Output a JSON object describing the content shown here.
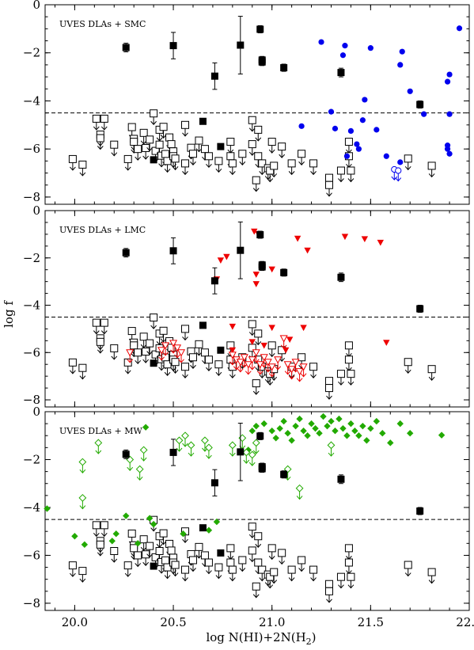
{
  "chart_data": {
    "type": "scatter",
    "xlabel": "log N(HI)+2N(H",
    "xlabel_sub": "2",
    "xlabel_close": ")",
    "ylabel": "log f",
    "xlim": [
      19.85,
      22.0
    ],
    "ylim": [
      -8.3,
      0.0
    ],
    "x_ticks": [
      20.0,
      20.5,
      21.0,
      21.5,
      22.0
    ],
    "x_tick_labels": [
      "20.0",
      "20.5",
      "21.0",
      "21.5",
      "22.0"
    ],
    "y_ticks": [
      0,
      -2,
      -4,
      -6,
      -8
    ],
    "y_tick_labels": [
      "0",
      "−2",
      "−4",
      "−6",
      "−8"
    ],
    "threshold_logf": -4.5,
    "colors": {
      "dla": "#000000",
      "smc": "#0000ee",
      "lmc": "#ee0000",
      "mw": "#22aa00"
    },
    "dla_detections": [
      {
        "x": 20.26,
        "y": -1.78,
        "err": 0.18
      },
      {
        "x": 20.5,
        "y": -1.7,
        "err": 0.55
      },
      {
        "x": 20.71,
        "y": -2.97,
        "err": 0.55
      },
      {
        "x": 20.84,
        "y": -1.68,
        "err": 1.2
      },
      {
        "x": 20.94,
        "y": -1.02,
        "err": 0.15
      },
      {
        "x": 20.95,
        "y": -2.3,
        "err": 0.15
      },
      {
        "x": 20.95,
        "y": -2.38,
        "err": 0.15
      },
      {
        "x": 21.06,
        "y": -2.62,
        "err": 0.15
      },
      {
        "x": 21.35,
        "y": -2.82,
        "err": 0.18
      },
      {
        "x": 21.75,
        "y": -4.15,
        "err": 0.15
      },
      {
        "x": 20.4,
        "y": -6.45,
        "err": 0.1
      },
      {
        "x": 20.65,
        "y": -4.85,
        "err": 0.0
      },
      {
        "x": 20.74,
        "y": -5.9,
        "err": 0.0
      }
    ],
    "dla_upper_limits": [
      {
        "x": 19.99,
        "y": -6.42
      },
      {
        "x": 20.04,
        "y": -6.65
      },
      {
        "x": 20.11,
        "y": -4.74
      },
      {
        "x": 20.13,
        "y": -5.4
      },
      {
        "x": 20.13,
        "y": -5.55
      },
      {
        "x": 20.15,
        "y": -4.74
      },
      {
        "x": 20.2,
        "y": -5.82
      },
      {
        "x": 20.27,
        "y": -6.42
      },
      {
        "x": 20.29,
        "y": -5.09
      },
      {
        "x": 20.3,
        "y": -5.58
      },
      {
        "x": 20.3,
        "y": -5.7
      },
      {
        "x": 20.32,
        "y": -6.0
      },
      {
        "x": 20.35,
        "y": -5.33
      },
      {
        "x": 20.36,
        "y": -5.96
      },
      {
        "x": 20.38,
        "y": -5.61
      },
      {
        "x": 20.4,
        "y": -4.52
      },
      {
        "x": 20.41,
        "y": -6.08
      },
      {
        "x": 20.43,
        "y": -5.2
      },
      {
        "x": 20.43,
        "y": -5.82
      },
      {
        "x": 20.44,
        "y": -6.28
      },
      {
        "x": 20.45,
        "y": -5.08
      },
      {
        "x": 20.46,
        "y": -6.21
      },
      {
        "x": 20.47,
        "y": -6.5
      },
      {
        "x": 20.48,
        "y": -5.52
      },
      {
        "x": 20.49,
        "y": -5.8
      },
      {
        "x": 20.5,
        "y": -6.1
      },
      {
        "x": 20.5,
        "y": -6.3
      },
      {
        "x": 20.51,
        "y": -6.4
      },
      {
        "x": 20.56,
        "y": -5.0
      },
      {
        "x": 20.56,
        "y": -6.6
      },
      {
        "x": 20.59,
        "y": -5.95
      },
      {
        "x": 20.6,
        "y": -6.2
      },
      {
        "x": 20.63,
        "y": -5.65
      },
      {
        "x": 20.66,
        "y": -6.0
      },
      {
        "x": 20.68,
        "y": -6.3
      },
      {
        "x": 20.73,
        "y": -6.5
      },
      {
        "x": 20.79,
        "y": -5.7
      },
      {
        "x": 20.79,
        "y": -6.3
      },
      {
        "x": 20.8,
        "y": -6.6
      },
      {
        "x": 20.85,
        "y": -6.2
      },
      {
        "x": 20.9,
        "y": -4.8
      },
      {
        "x": 20.9,
        "y": -5.8
      },
      {
        "x": 20.92,
        "y": -7.3
      },
      {
        "x": 20.93,
        "y": -5.2
      },
      {
        "x": 20.93,
        "y": -6.3
      },
      {
        "x": 20.95,
        "y": -6.6
      },
      {
        "x": 20.98,
        "y": -6.8
      },
      {
        "x": 20.99,
        "y": -6.9
      },
      {
        "x": 21.0,
        "y": -5.7
      },
      {
        "x": 21.01,
        "y": -6.7
      },
      {
        "x": 21.05,
        "y": -5.9
      },
      {
        "x": 21.1,
        "y": -6.6
      },
      {
        "x": 21.15,
        "y": -6.2
      },
      {
        "x": 21.21,
        "y": -6.6
      },
      {
        "x": 21.29,
        "y": -7.2
      },
      {
        "x": 21.29,
        "y": -7.5
      },
      {
        "x": 21.35,
        "y": -6.9
      },
      {
        "x": 21.39,
        "y": -5.7
      },
      {
        "x": 21.39,
        "y": -6.3
      },
      {
        "x": 21.4,
        "y": -6.9
      },
      {
        "x": 21.69,
        "y": -6.4
      },
      {
        "x": 21.81,
        "y": -6.7
      }
    ],
    "smc_detections": [
      {
        "x": 21.25,
        "y": -1.55
      },
      {
        "x": 21.37,
        "y": -1.7
      },
      {
        "x": 21.36,
        "y": -2.1
      },
      {
        "x": 21.5,
        "y": -1.8
      },
      {
        "x": 21.66,
        "y": -1.95
      },
      {
        "x": 21.65,
        "y": -2.5
      },
      {
        "x": 21.95,
        "y": -0.98
      },
      {
        "x": 21.9,
        "y": -2.9
      },
      {
        "x": 21.89,
        "y": -3.2
      },
      {
        "x": 21.7,
        "y": -3.6
      },
      {
        "x": 21.47,
        "y": -3.95
      },
      {
        "x": 21.3,
        "y": -4.45
      },
      {
        "x": 21.77,
        "y": -4.55
      },
      {
        "x": 21.9,
        "y": -4.55
      },
      {
        "x": 21.46,
        "y": -4.8
      },
      {
        "x": 21.32,
        "y": -5.15
      },
      {
        "x": 21.4,
        "y": -5.25
      },
      {
        "x": 21.53,
        "y": -5.2
      },
      {
        "x": 21.15,
        "y": -5.05
      },
      {
        "x": 21.43,
        "y": -5.8
      },
      {
        "x": 21.44,
        "y": -6.0
      },
      {
        "x": 21.58,
        "y": -6.3
      },
      {
        "x": 21.38,
        "y": -6.3
      },
      {
        "x": 21.65,
        "y": -6.55
      },
      {
        "x": 21.89,
        "y": -5.85
      },
      {
        "x": 21.89,
        "y": -6.0
      },
      {
        "x": 21.9,
        "y": -6.2
      }
    ],
    "smc_upper_limits": [
      {
        "x": 21.62,
        "y": -6.85
      },
      {
        "x": 21.64,
        "y": -6.9
      }
    ],
    "lmc_detections": [
      {
        "x": 20.91,
        "y": -0.88
      },
      {
        "x": 20.93,
        "y": -0.98
      },
      {
        "x": 21.13,
        "y": -1.18
      },
      {
        "x": 21.47,
        "y": -1.2
      },
      {
        "x": 21.37,
        "y": -1.1
      },
      {
        "x": 21.55,
        "y": -1.35
      },
      {
        "x": 21.18,
        "y": -1.68
      },
      {
        "x": 20.77,
        "y": -1.95
      },
      {
        "x": 20.74,
        "y": -2.1
      },
      {
        "x": 21.0,
        "y": -2.48
      },
      {
        "x": 20.92,
        "y": -2.7
      },
      {
        "x": 20.92,
        "y": -3.1
      },
      {
        "x": 20.72,
        "y": -2.9
      },
      {
        "x": 20.8,
        "y": -4.9
      },
      {
        "x": 21.0,
        "y": -4.95
      },
      {
        "x": 21.16,
        "y": -4.95
      },
      {
        "x": 21.58,
        "y": -5.58
      },
      {
        "x": 20.96,
        "y": -5.7
      },
      {
        "x": 20.9,
        "y": -5.55
      },
      {
        "x": 21.09,
        "y": -5.45
      },
      {
        "x": 20.8,
        "y": -5.9
      },
      {
        "x": 21.07,
        "y": -5.9
      }
    ],
    "lmc_upper_limits": [
      {
        "x": 20.28,
        "y": -6.0
      },
      {
        "x": 20.44,
        "y": -5.9
      },
      {
        "x": 20.46,
        "y": -5.7
      },
      {
        "x": 20.5,
        "y": -5.6
      },
      {
        "x": 20.52,
        "y": -5.8
      },
      {
        "x": 20.54,
        "y": -6.0
      },
      {
        "x": 20.8,
        "y": -6.1
      },
      {
        "x": 20.82,
        "y": -6.3
      },
      {
        "x": 20.84,
        "y": -6.4
      },
      {
        "x": 20.86,
        "y": -6.2
      },
      {
        "x": 20.88,
        "y": -6.5
      },
      {
        "x": 20.9,
        "y": -6.3
      },
      {
        "x": 20.92,
        "y": -6.0
      },
      {
        "x": 20.94,
        "y": -6.5
      },
      {
        "x": 20.96,
        "y": -6.2
      },
      {
        "x": 20.98,
        "y": -6.4
      },
      {
        "x": 21.0,
        "y": -6.6
      },
      {
        "x": 21.03,
        "y": -6.3
      },
      {
        "x": 21.06,
        "y": -5.4
      },
      {
        "x": 21.08,
        "y": -6.5
      },
      {
        "x": 21.1,
        "y": -6.7
      },
      {
        "x": 21.12,
        "y": -6.4
      },
      {
        "x": 21.14,
        "y": -6.8
      },
      {
        "x": 21.16,
        "y": -6.6
      }
    ],
    "mw_detections": [
      {
        "x": 19.86,
        "y": -4.05
      },
      {
        "x": 20.05,
        "y": -5.55
      },
      {
        "x": 20.0,
        "y": -5.2
      },
      {
        "x": 20.21,
        "y": -5.1
      },
      {
        "x": 20.19,
        "y": -5.4
      },
      {
        "x": 20.26,
        "y": -4.35
      },
      {
        "x": 20.32,
        "y": -5.5
      },
      {
        "x": 20.38,
        "y": -4.45
      },
      {
        "x": 20.4,
        "y": -4.7
      },
      {
        "x": 20.36,
        "y": -0.65
      },
      {
        "x": 20.68,
        "y": -4.95
      },
      {
        "x": 20.72,
        "y": -4.6
      },
      {
        "x": 20.55,
        "y": -5.1
      },
      {
        "x": 20.9,
        "y": -0.8
      },
      {
        "x": 20.92,
        "y": -0.6
      },
      {
        "x": 20.96,
        "y": -0.5
      },
      {
        "x": 21.0,
        "y": -0.8
      },
      {
        "x": 21.02,
        "y": -1.1
      },
      {
        "x": 21.04,
        "y": -0.7
      },
      {
        "x": 21.06,
        "y": -0.4
      },
      {
        "x": 21.08,
        "y": -0.9
      },
      {
        "x": 21.1,
        "y": -1.2
      },
      {
        "x": 21.12,
        "y": -0.6
      },
      {
        "x": 21.14,
        "y": -0.3
      },
      {
        "x": 21.16,
        "y": -0.8
      },
      {
        "x": 21.18,
        "y": -1.0
      },
      {
        "x": 21.2,
        "y": -0.5
      },
      {
        "x": 21.22,
        "y": -0.7
      },
      {
        "x": 21.24,
        "y": -0.9
      },
      {
        "x": 21.26,
        "y": -0.2
      },
      {
        "x": 21.28,
        "y": -0.6
      },
      {
        "x": 21.3,
        "y": -0.4
      },
      {
        "x": 21.32,
        "y": -0.8
      },
      {
        "x": 21.34,
        "y": -0.3
      },
      {
        "x": 21.36,
        "y": -0.7
      },
      {
        "x": 21.38,
        "y": -1.0
      },
      {
        "x": 21.4,
        "y": -0.5
      },
      {
        "x": 21.42,
        "y": -0.8
      },
      {
        "x": 21.44,
        "y": -1.0
      },
      {
        "x": 21.46,
        "y": -0.6
      },
      {
        "x": 21.48,
        "y": -1.2
      },
      {
        "x": 21.5,
        "y": -0.7
      },
      {
        "x": 21.53,
        "y": -0.4
      },
      {
        "x": 21.56,
        "y": -0.9
      },
      {
        "x": 21.6,
        "y": -1.3
      },
      {
        "x": 21.65,
        "y": -0.5
      },
      {
        "x": 21.7,
        "y": -0.9
      },
      {
        "x": 21.86,
        "y": -0.98
      },
      {
        "x": 20.84,
        "y": -1.65
      },
      {
        "x": 20.88,
        "y": -1.6
      }
    ],
    "mw_upper_limits": [
      {
        "x": 20.04,
        "y": -2.1
      },
      {
        "x": 20.04,
        "y": -3.6
      },
      {
        "x": 20.12,
        "y": -1.3
      },
      {
        "x": 20.28,
        "y": -2.0
      },
      {
        "x": 20.33,
        "y": -2.4
      },
      {
        "x": 20.35,
        "y": -1.6
      },
      {
        "x": 20.53,
        "y": -1.2
      },
      {
        "x": 20.56,
        "y": -1.0
      },
      {
        "x": 20.59,
        "y": -1.4
      },
      {
        "x": 20.66,
        "y": -1.2
      },
      {
        "x": 20.68,
        "y": -1.5
      },
      {
        "x": 20.8,
        "y": -1.4
      },
      {
        "x": 20.85,
        "y": -1.1
      },
      {
        "x": 20.87,
        "y": -1.7
      },
      {
        "x": 20.9,
        "y": -1.8
      },
      {
        "x": 20.92,
        "y": -1.3
      },
      {
        "x": 21.08,
        "y": -2.4
      },
      {
        "x": 21.14,
        "y": -3.2
      },
      {
        "x": 21.3,
        "y": -1.4
      }
    ],
    "panels": [
      {
        "label": "UVES DLAs + SMC",
        "comparison": "smc"
      },
      {
        "label": "UVES DLAs + LMC",
        "comparison": "lmc"
      },
      {
        "label": "UVES DLAs + MW",
        "comparison": "mw"
      }
    ]
  }
}
